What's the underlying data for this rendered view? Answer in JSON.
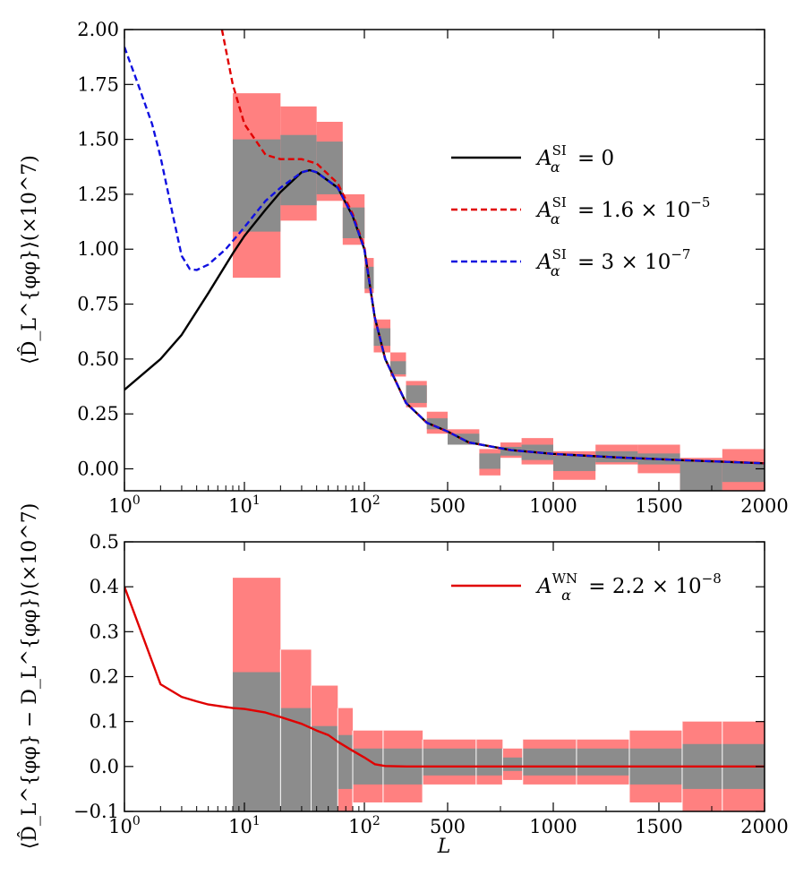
{
  "chart_data": [
    {
      "name": "top-panel",
      "type": "line",
      "xscale": "hybrid-log-linear",
      "xlim": [
        1,
        2000
      ],
      "ylim": [
        -0.1,
        2.0
      ],
      "xtick_labels": [
        {
          "value": 1,
          "label": "10",
          "exp": "0"
        },
        {
          "value": 10,
          "label": "10",
          "exp": "1"
        },
        {
          "value": 100,
          "label": "10",
          "exp": "2"
        },
        {
          "value": 500,
          "label": "500"
        },
        {
          "value": 1000,
          "label": "1000"
        },
        {
          "value": 1500,
          "label": "1500"
        },
        {
          "value": 2000,
          "label": "2000"
        }
      ],
      "yticks": [
        0.0,
        0.25,
        0.5,
        0.75,
        1.0,
        1.25,
        1.5,
        1.75,
        2.0
      ],
      "ytick_labels": [
        "0.00",
        "0.25",
        "0.50",
        "0.75",
        "1.00",
        "1.25",
        "1.50",
        "1.75",
        "2.00"
      ],
      "ylabel": "⟨D̂_L^{φφ}⟩(×10^7)",
      "legend_position": "right-center",
      "bands": [
        {
          "x0": 8,
          "x1": 20,
          "gray_lo": 1.08,
          "gray_hi": 1.5,
          "red_lo": 0.87,
          "red_hi": 1.71
        },
        {
          "x0": 20,
          "x1": 40,
          "gray_lo": 1.2,
          "gray_hi": 1.52,
          "red_lo": 1.13,
          "red_hi": 1.65
        },
        {
          "x0": 40,
          "x1": 66,
          "gray_lo": 1.25,
          "gray_hi": 1.49,
          "red_lo": 1.22,
          "red_hi": 1.58
        },
        {
          "x0": 66,
          "x1": 101,
          "gray_lo": 1.05,
          "gray_hi": 1.19,
          "red_lo": 1.02,
          "red_hi": 1.25
        },
        {
          "x0": 101,
          "x1": 145,
          "gray_lo": 0.82,
          "gray_hi": 0.92,
          "red_lo": 0.8,
          "red_hi": 0.96
        },
        {
          "x0": 145,
          "x1": 225,
          "gray_lo": 0.56,
          "gray_hi": 0.64,
          "red_lo": 0.53,
          "red_hi": 0.68
        },
        {
          "x0": 225,
          "x1": 300,
          "gray_lo": 0.43,
          "gray_hi": 0.49,
          "red_lo": 0.42,
          "red_hi": 0.53
        },
        {
          "x0": 300,
          "x1": 400,
          "gray_lo": 0.3,
          "gray_hi": 0.38,
          "red_lo": 0.28,
          "red_hi": 0.4
        },
        {
          "x0": 400,
          "x1": 500,
          "gray_lo": 0.18,
          "gray_hi": 0.23,
          "red_lo": 0.16,
          "red_hi": 0.26
        },
        {
          "x0": 500,
          "x1": 650,
          "gray_lo": 0.11,
          "gray_hi": 0.16,
          "red_lo": 0.11,
          "red_hi": 0.18
        },
        {
          "x0": 650,
          "x1": 750,
          "gray_lo": 0.0,
          "gray_hi": 0.07,
          "red_lo": -0.03,
          "red_hi": 0.09
        },
        {
          "x0": 750,
          "x1": 850,
          "gray_lo": 0.06,
          "gray_hi": 0.1,
          "red_lo": 0.05,
          "red_hi": 0.12
        },
        {
          "x0": 850,
          "x1": 1000,
          "gray_lo": 0.04,
          "gray_hi": 0.11,
          "red_lo": 0.02,
          "red_hi": 0.14
        },
        {
          "x0": 1000,
          "x1": 1200,
          "gray_lo": -0.01,
          "gray_hi": 0.06,
          "red_lo": -0.05,
          "red_hi": 0.08
        },
        {
          "x0": 1200,
          "x1": 1400,
          "gray_lo": 0.03,
          "gray_hi": 0.08,
          "red_lo": 0.02,
          "red_hi": 0.11
        },
        {
          "x0": 1400,
          "x1": 1600,
          "gray_lo": 0.02,
          "gray_hi": 0.07,
          "red_lo": -0.02,
          "red_hi": 0.11
        },
        {
          "x0": 1600,
          "x1": 1800,
          "gray_lo": -0.1,
          "gray_hi": 0.04,
          "red_lo": -0.1,
          "red_hi": 0.05
        },
        {
          "x0": 1800,
          "x1": 2000,
          "gray_lo": -0.06,
          "gray_hi": 0.03,
          "red_lo": -0.1,
          "red_hi": 0.09
        }
      ],
      "series": [
        {
          "name": "A_alpha^SI = 0",
          "legend_main": "A",
          "legend_sup": "SI",
          "legend_sub": "α",
          "legend_rest": " = 0",
          "color": "#000000",
          "style": "solid",
          "x": [
            1,
            2,
            3,
            5,
            8,
            10,
            15,
            20,
            30,
            35,
            40,
            60,
            80,
            100,
            150,
            200,
            300,
            400,
            500,
            600,
            800,
            1000,
            1300,
            1600,
            2000
          ],
          "y": [
            0.36,
            0.5,
            0.61,
            0.8,
            0.98,
            1.06,
            1.18,
            1.26,
            1.35,
            1.36,
            1.35,
            1.28,
            1.15,
            1.0,
            0.69,
            0.5,
            0.3,
            0.21,
            0.17,
            0.12,
            0.085,
            0.068,
            0.052,
            0.04,
            0.025
          ]
        },
        {
          "name": "A_alpha^SI = 1.6e-5",
          "legend_main": "A",
          "legend_sup": "SI",
          "legend_sub": "α",
          "legend_rest": " = 1.6 × 10",
          "legend_exp": "−5",
          "color": "#e00000",
          "style": "dashed",
          "x": [
            6.5,
            8,
            10,
            15,
            20,
            30,
            40,
            60,
            80,
            100,
            150,
            200,
            300,
            400,
            500,
            600,
            800,
            1000,
            1300,
            1600,
            2000
          ],
          "y": [
            2.0,
            1.75,
            1.57,
            1.43,
            1.41,
            1.41,
            1.39,
            1.3,
            1.16,
            1.01,
            0.69,
            0.5,
            0.3,
            0.21,
            0.17,
            0.12,
            0.085,
            0.068,
            0.052,
            0.04,
            0.025
          ]
        },
        {
          "name": "A_alpha^SI = 3e-7",
          "legend_main": "A",
          "legend_sup": "SI",
          "legend_sub": "α",
          "legend_rest": " = 3 × 10",
          "legend_exp": "−7",
          "color": "#1010e0",
          "style": "dashed",
          "x": [
            1,
            1.3,
            1.7,
            2,
            2.5,
            3,
            3.5,
            4,
            5,
            7,
            10,
            15,
            20,
            30,
            35,
            40,
            60,
            80,
            100,
            150,
            200,
            300,
            400,
            500,
            600,
            800,
            1000,
            1300,
            1600,
            2000
          ],
          "y": [
            1.92,
            1.75,
            1.57,
            1.42,
            1.17,
            0.97,
            0.91,
            0.905,
            0.93,
            1.0,
            1.1,
            1.22,
            1.28,
            1.35,
            1.36,
            1.35,
            1.28,
            1.15,
            1.0,
            0.69,
            0.5,
            0.3,
            0.21,
            0.17,
            0.12,
            0.085,
            0.068,
            0.052,
            0.04,
            0.025
          ]
        }
      ]
    },
    {
      "name": "bottom-panel",
      "type": "line",
      "xscale": "hybrid-log-linear",
      "xlim": [
        1,
        2000
      ],
      "ylim": [
        -0.1,
        0.5
      ],
      "xtick_labels": [
        {
          "value": 1,
          "label": "10",
          "exp": "0"
        },
        {
          "value": 10,
          "label": "10",
          "exp": "1"
        },
        {
          "value": 100,
          "label": "10",
          "exp": "2"
        },
        {
          "value": 500,
          "label": "500"
        },
        {
          "value": 1000,
          "label": "1000"
        },
        {
          "value": 1500,
          "label": "1500"
        },
        {
          "value": 2000,
          "label": "2000"
        }
      ],
      "yticks": [
        -0.1,
        0.0,
        0.1,
        0.2,
        0.3,
        0.4,
        0.5
      ],
      "ytick_labels": [
        "−0.1",
        "0.0",
        "0.1",
        "0.2",
        "0.3",
        "0.4",
        "0.5"
      ],
      "xlabel": "L",
      "ylabel": "⟨D̂_L^{φφ} − D_L^{φφ}⟩(×10^7)",
      "legend_position": "top-right",
      "bands": [
        {
          "x0": 8,
          "x1": 20,
          "gray_lo": -0.1,
          "gray_hi": 0.21,
          "red_lo": -0.1,
          "red_hi": 0.42
        },
        {
          "x0": 20,
          "x1": 36,
          "gray_lo": -0.1,
          "gray_hi": 0.13,
          "red_lo": -0.1,
          "red_hi": 0.26
        },
        {
          "x0": 36,
          "x1": 60,
          "gray_lo": -0.1,
          "gray_hi": 0.09,
          "red_lo": -0.1,
          "red_hi": 0.18
        },
        {
          "x0": 60,
          "x1": 80,
          "gray_lo": -0.05,
          "gray_hi": 0.07,
          "red_lo": -0.1,
          "red_hi": 0.13
        },
        {
          "x0": 80,
          "x1": 190,
          "gray_lo": -0.04,
          "gray_hi": 0.04,
          "red_lo": -0.08,
          "red_hi": 0.08
        },
        {
          "x0": 190,
          "x1": 380,
          "gray_lo": -0.04,
          "gray_hi": 0.04,
          "red_lo": -0.08,
          "red_hi": 0.08
        },
        {
          "x0": 380,
          "x1": 635,
          "gray_lo": -0.02,
          "gray_hi": 0.04,
          "red_lo": -0.04,
          "red_hi": 0.06
        },
        {
          "x0": 635,
          "x1": 760,
          "gray_lo": -0.02,
          "gray_hi": 0.04,
          "red_lo": -0.04,
          "red_hi": 0.06
        },
        {
          "x0": 760,
          "x1": 855,
          "gray_lo": -0.01,
          "gray_hi": 0.02,
          "red_lo": -0.03,
          "red_hi": 0.04
        },
        {
          "x0": 855,
          "x1": 1110,
          "gray_lo": -0.02,
          "gray_hi": 0.04,
          "red_lo": -0.04,
          "red_hi": 0.06
        },
        {
          "x0": 1110,
          "x1": 1360,
          "gray_lo": -0.02,
          "gray_hi": 0.04,
          "red_lo": -0.04,
          "red_hi": 0.06
        },
        {
          "x0": 1360,
          "x1": 1610,
          "gray_lo": -0.04,
          "gray_hi": 0.04,
          "red_lo": -0.08,
          "red_hi": 0.08
        },
        {
          "x0": 1610,
          "x1": 1800,
          "gray_lo": -0.05,
          "gray_hi": 0.05,
          "red_lo": -0.1,
          "red_hi": 0.1
        },
        {
          "x0": 1800,
          "x1": 2000,
          "gray_lo": -0.05,
          "gray_hi": 0.05,
          "red_lo": -0.1,
          "red_hi": 0.1
        }
      ],
      "series": [
        {
          "name": "A_alpha^WN = 2.2e-8",
          "legend_main": "A",
          "legend_sup": "WN",
          "legend_sub": "α",
          "legend_rest": " = 2.2 × 10",
          "legend_exp": "−8",
          "color": "#e00000",
          "style": "solid",
          "x": [
            1,
            2,
            3,
            4,
            5,
            8,
            10,
            15,
            20,
            30,
            40,
            50,
            60,
            80,
            100,
            150,
            200,
            300,
            500,
            1000,
            1500,
            2000
          ],
          "y": [
            0.4,
            0.183,
            0.155,
            0.145,
            0.138,
            0.13,
            0.128,
            0.12,
            0.11,
            0.095,
            0.08,
            0.07,
            0.055,
            0.035,
            0.02,
            0.005,
            0.001,
            0.0,
            0.0,
            0.0,
            0.0,
            0.0
          ]
        }
      ]
    }
  ]
}
